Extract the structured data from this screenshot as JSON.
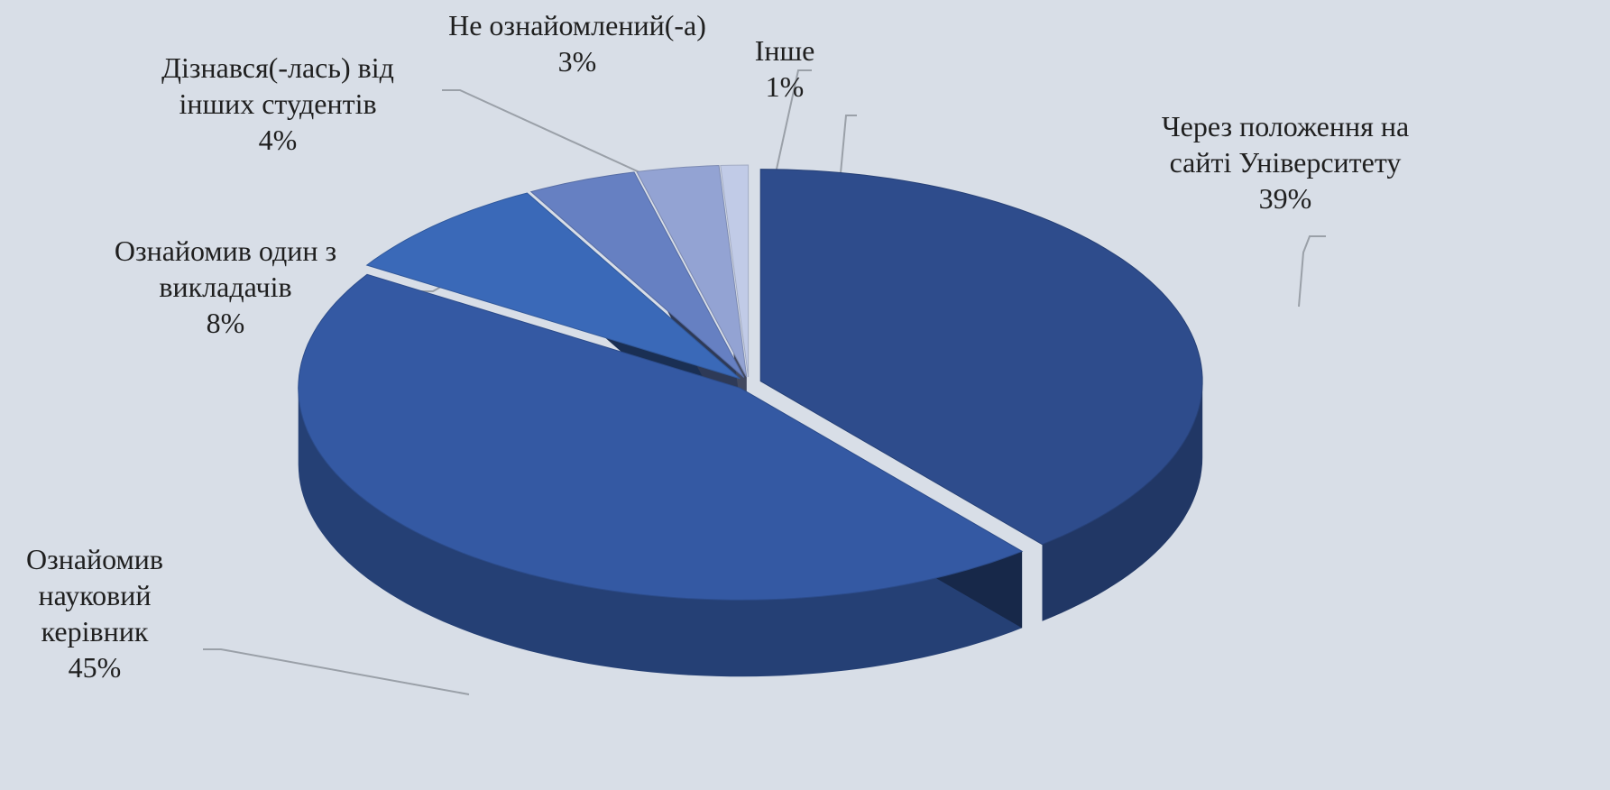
{
  "chart_data": {
    "type": "pie",
    "categories": [
      "Через положення на сайті Університету",
      "Ознайомив науковий керівник",
      "Ознайомив один з викладачів",
      "Дізнався(-лась) від інших студентів",
      "Не ознайомлений(-а)",
      "Інше"
    ],
    "values": [
      39,
      45,
      8,
      4,
      3,
      1
    ],
    "value_labels": [
      "39%",
      "45%",
      "8%",
      "4%",
      "3%",
      "1%"
    ],
    "colors": [
      "#2e4c8c",
      "#3459a3",
      "#3a69b8",
      "#6680c2",
      "#93a3d3",
      "#c1cbe7"
    ]
  }
}
